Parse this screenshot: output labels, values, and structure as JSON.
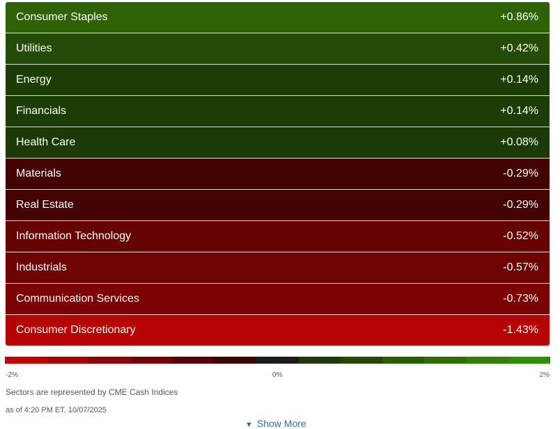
{
  "sectors": [
    {
      "name": "Consumer Staples",
      "change": "+0.86%",
      "color": "#2e6205"
    },
    {
      "name": "Utilities",
      "change": "+0.42%",
      "color": "#244c06"
    },
    {
      "name": "Energy",
      "change": "+0.14%",
      "color": "#1c3d06"
    },
    {
      "name": "Financials",
      "change": "+0.14%",
      "color": "#1c3d06"
    },
    {
      "name": "Health Care",
      "change": "+0.08%",
      "color": "#1b3a06"
    },
    {
      "name": "Materials",
      "change": "-0.29%",
      "color": "#440303"
    },
    {
      "name": "Real Estate",
      "change": "-0.29%",
      "color": "#440303"
    },
    {
      "name": "Information Technology",
      "change": "-0.52%",
      "color": "#660303"
    },
    {
      "name": "Industrials",
      "change": "-0.57%",
      "color": "#6d0303"
    },
    {
      "name": "Communication Services",
      "change": "-0.73%",
      "color": "#7c0303"
    },
    {
      "name": "Consumer Discretionary",
      "change": "-1.43%",
      "color": "#b70303"
    }
  ],
  "scale": {
    "min_label": "-2%",
    "mid_label": "0%",
    "max_label": "2%",
    "colors": [
      "#c40202",
      "#a80202",
      "#8e0202",
      "#740202",
      "#5a0202",
      "#410202",
      "#1a1a1a",
      "#1e3a06",
      "#234a05",
      "#2a5e05",
      "#2f6e04",
      "#347f03",
      "#2c8e01"
    ]
  },
  "footer": {
    "source_note": "Sectors are represented by CME Cash Indices",
    "timestamp": "as of 4:20 PM ET, 10/07/2025",
    "show_more": "Show More",
    "show_more_icon": "chevron-down-icon"
  }
}
